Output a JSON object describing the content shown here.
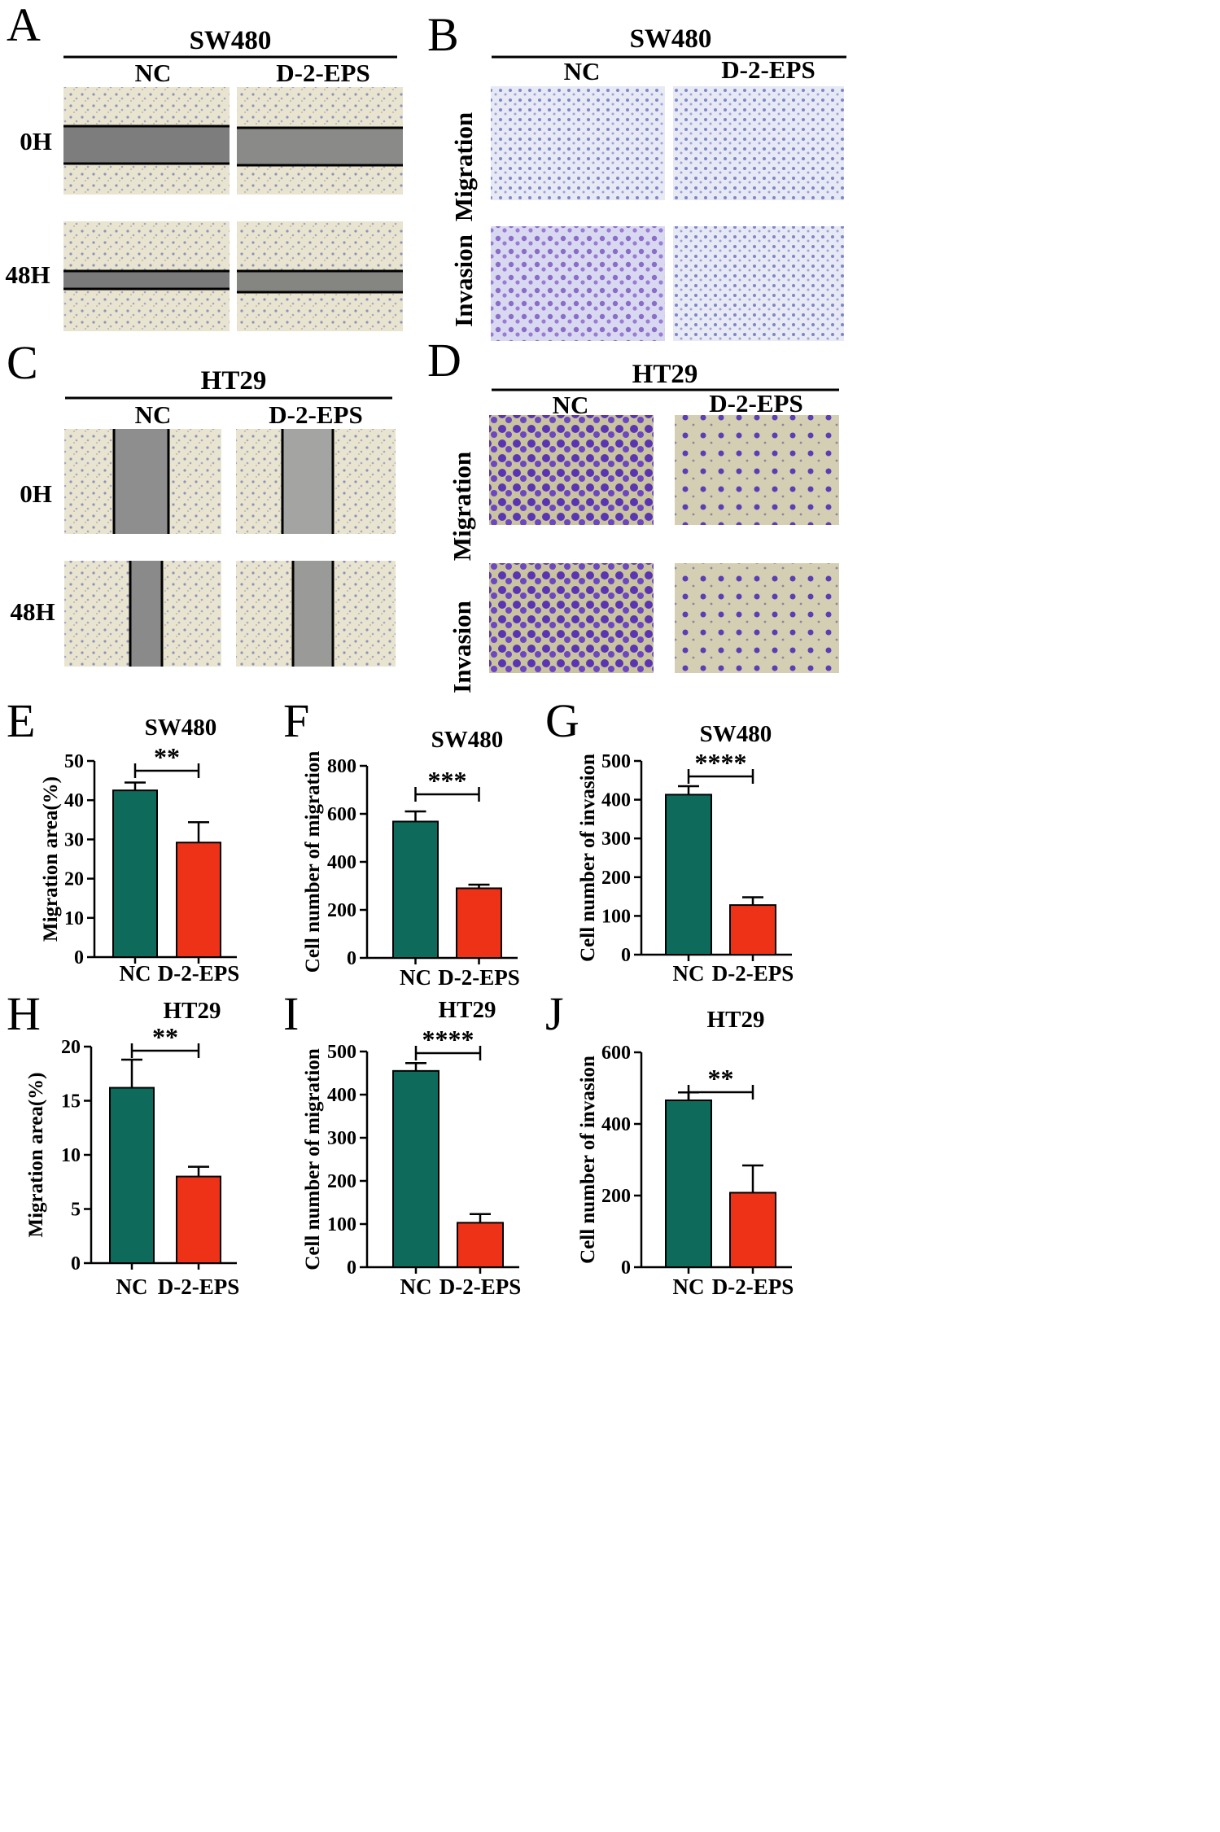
{
  "colors": {
    "nc": "#0e6b5c",
    "d2eps": "#ee3217",
    "axis": "#000000"
  },
  "panels": {
    "A": {
      "letter": "A",
      "header": "SW480",
      "col1": "NC",
      "col2": "D-2-EPS",
      "row1": "0H",
      "row2": "48H"
    },
    "B": {
      "letter": "B",
      "header": "SW480",
      "col1": "NC",
      "col2": "D-2-EPS",
      "row1": "Migration",
      "row2": "Invasion"
    },
    "C": {
      "letter": "C",
      "header": "HT29",
      "col1": "NC",
      "col2": "D-2-EPS",
      "row1": "0H",
      "row2": "48H"
    },
    "D": {
      "letter": "D",
      "header": "HT29",
      "col1": "NC",
      "col2": "D-2-EPS",
      "row1": "Migration",
      "row2": "Invasion"
    }
  },
  "micrographs": {
    "A": {
      "style": "scratch-horizontal",
      "palette": "light"
    },
    "B": {
      "style": "transwell-sparse",
      "palette": "blue"
    },
    "C": {
      "style": "scratch-vertical",
      "palette": "light"
    },
    "D": {
      "style": "transwell-dense",
      "palette": "purple"
    }
  },
  "chart_data": [
    {
      "letter": "E",
      "type": "bar",
      "title": "SW480",
      "ylabel": "Migration area(%)",
      "categories": [
        "NC",
        "D-2-EPS"
      ],
      "values": [
        42.5,
        29.2
      ],
      "errors": [
        2.0,
        5.2
      ],
      "ylim": [
        0,
        50
      ],
      "yticks": [
        "0",
        "10",
        "20",
        "30",
        "40",
        "50"
      ],
      "significance": "**"
    },
    {
      "letter": "F",
      "type": "bar",
      "title": "SW480",
      "ylabel": "Cell number of migration",
      "categories": [
        "NC",
        "D-2-EPS"
      ],
      "values": [
        568,
        290
      ],
      "errors": [
        42,
        15
      ],
      "ylim": [
        0,
        800
      ],
      "yticks": [
        "0",
        "200",
        "400",
        "600",
        "800"
      ],
      "significance": "***"
    },
    {
      "letter": "G",
      "type": "bar",
      "title": "SW480",
      "ylabel": "Cell number of invasion",
      "categories": [
        "NC",
        "D-2-EPS"
      ],
      "values": [
        413,
        128
      ],
      "errors": [
        22,
        20
      ],
      "ylim": [
        0,
        500
      ],
      "yticks": [
        "0",
        "100",
        "200",
        "300",
        "400",
        "500"
      ],
      "significance": "****"
    },
    {
      "letter": "H",
      "type": "bar",
      "title": "HT29",
      "ylabel": "Migration area(%)",
      "categories": [
        "NC",
        "D-2-EPS"
      ],
      "values": [
        16.2,
        8.0
      ],
      "errors": [
        2.6,
        0.9
      ],
      "ylim": [
        0,
        20
      ],
      "yticks": [
        "0",
        "5",
        "10",
        "15",
        "20"
      ],
      "significance": "**"
    },
    {
      "letter": "I",
      "type": "bar",
      "title": "HT29",
      "ylabel": "Cell number of migration",
      "categories": [
        "NC",
        "D-2-EPS"
      ],
      "values": [
        455,
        103
      ],
      "errors": [
        18,
        20
      ],
      "ylim": [
        0,
        500
      ],
      "yticks": [
        "0",
        "100",
        "200",
        "300",
        "400",
        "500"
      ],
      "significance": "****"
    },
    {
      "letter": "J",
      "type": "bar",
      "title": "HT29",
      "ylabel": "Cell number of invasion",
      "categories": [
        "NC",
        "D-2-EPS"
      ],
      "values": [
        466,
        208
      ],
      "errors": [
        22,
        76
      ],
      "ylim": [
        0,
        600
      ],
      "yticks": [
        "0",
        "200",
        "400",
        "600"
      ],
      "significance": "**"
    }
  ]
}
